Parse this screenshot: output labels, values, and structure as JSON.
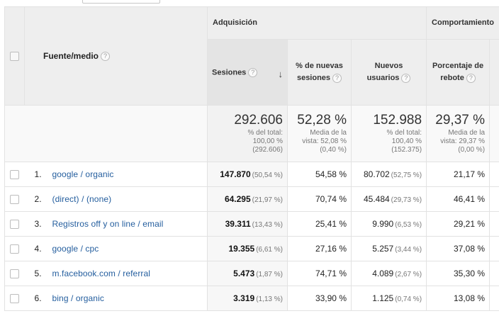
{
  "header": {
    "source_medium": "Fuente/medio",
    "group_acquisition": "Adquisición",
    "group_behavior": "Comportamiento",
    "col_sessions": "Sesiones",
    "col_new_sessions_line1": "% de nuevas",
    "col_new_sessions_line2": "sesiones",
    "col_new_users_line1": "Nuevos",
    "col_new_users_line2": "usuarios",
    "col_bounce_line1": "Porcentaje de",
    "col_bounce_line2": "rebote",
    "help": "?",
    "sort_icon": "arrow-down-icon"
  },
  "totals": {
    "sessions": {
      "value": "292.606",
      "l1": "% del total:",
      "l2": "100,00 %",
      "l3": "(292.606)"
    },
    "new_sessions": {
      "value": "52,28 %",
      "l1": "Media de la",
      "l2": "vista: 52,08 %",
      "l3": "(0,40 %)"
    },
    "new_users": {
      "value": "152.988",
      "l1": "% del total:",
      "l2": "100,40 %",
      "l3": "(152.375)"
    },
    "bounce": {
      "value": "29,37 %",
      "l1": "Media de la",
      "l2": "vista: 29,37 %",
      "l3": "(0,00 %)"
    }
  },
  "rows": [
    {
      "idx": "1.",
      "source": "google / organic",
      "sessions": "147.870",
      "sessions_pct": "(50,54 %)",
      "new_sessions": "54,58 %",
      "new_users": "80.702",
      "new_users_pct": "(52,75 %)",
      "bounce": "21,17 %"
    },
    {
      "idx": "2.",
      "source": "(direct) / (none)",
      "sessions": "64.295",
      "sessions_pct": "(21,97 %)",
      "new_sessions": "70,74 %",
      "new_users": "45.484",
      "new_users_pct": "(29,73 %)",
      "bounce": "46,41 %"
    },
    {
      "idx": "3.",
      "source": "Registros off y on line / email",
      "sessions": "39.311",
      "sessions_pct": "(13,43 %)",
      "new_sessions": "25,41 %",
      "new_users": "9.990",
      "new_users_pct": "(6,53 %)",
      "bounce": "29,21 %"
    },
    {
      "idx": "4.",
      "source": "google / cpc",
      "sessions": "19.355",
      "sessions_pct": "(6,61 %)",
      "new_sessions": "27,16 %",
      "new_users": "5.257",
      "new_users_pct": "(3,44 %)",
      "bounce": "37,08 %"
    },
    {
      "idx": "5.",
      "source": "m.facebook.com / referral",
      "sessions": "5.473",
      "sessions_pct": "(1,87 %)",
      "new_sessions": "74,71 %",
      "new_users": "4.089",
      "new_users_pct": "(2,67 %)",
      "bounce": "35,30 %"
    },
    {
      "idx": "6.",
      "source": "bing / organic",
      "sessions": "3.319",
      "sessions_pct": "(1,13 %)",
      "new_sessions": "33,90 %",
      "new_users": "1.125",
      "new_users_pct": "(0,74 %)",
      "bounce": "13,08 %"
    }
  ]
}
